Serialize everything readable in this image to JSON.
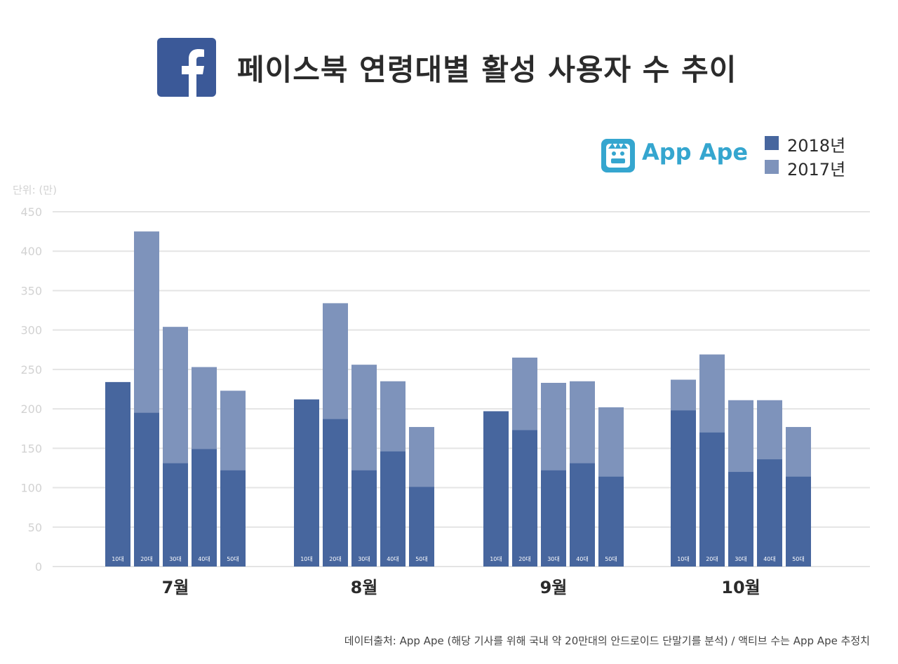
{
  "header": {
    "logo_icon": "facebook-f-icon",
    "title": "페이스북 연령대별 활성 사용자 수 추이"
  },
  "brand": {
    "icon": "app-ape-monkey-icon",
    "name": "App Ape"
  },
  "colors": {
    "y2018": "#47669e",
    "y2017": "#7e93bb",
    "facebook_blue": "#3b5998",
    "brand": "#35a6cf",
    "grid": "#e4e4e4",
    "axis_text": "#d2d2d2"
  },
  "footer": {
    "source": "데이터출처: App Ape (해당 기사를 위해 국내 약 20만대의 안드로이드 단말기를 분석) / 액티브 수는 App Ape 추정치"
  },
  "chart_data": {
    "type": "bar",
    "unit_label": "단위: (만)",
    "ylim": [
      0,
      450
    ],
    "yticks": [
      0,
      50,
      100,
      150,
      200,
      250,
      300,
      350,
      400,
      450
    ],
    "grid": true,
    "legend_position": "top-right",
    "groups": [
      "7월",
      "8월",
      "9월",
      "10월"
    ],
    "age_labels": [
      "10대",
      "20대",
      "30대",
      "40대",
      "50대"
    ],
    "series": [
      {
        "name": "2018년",
        "values": [
          [
            234,
            195,
            131,
            149,
            122
          ],
          [
            212,
            187,
            122,
            146,
            101
          ],
          [
            197,
            173,
            122,
            131,
            114
          ],
          [
            198,
            170,
            120,
            136,
            114
          ]
        ]
      },
      {
        "name": "2017년",
        "values": [
          [
            207,
            425,
            304,
            253,
            223
          ],
          [
            192,
            334,
            256,
            235,
            177
          ],
          [
            192,
            265,
            233,
            235,
            202
          ],
          [
            237,
            269,
            211,
            211,
            177
          ]
        ]
      }
    ]
  }
}
